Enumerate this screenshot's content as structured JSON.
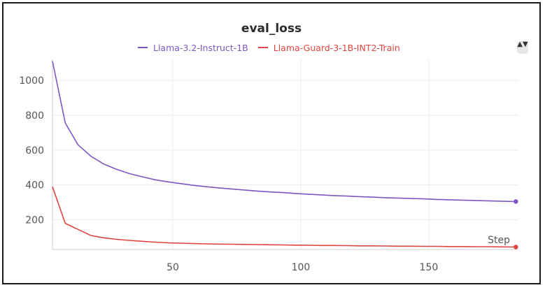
{
  "chart_data": {
    "type": "line",
    "title": "eval_loss",
    "xlabel": "Step",
    "ylabel": "",
    "xlim": [
      3,
      185
    ],
    "ylim": [
      30,
      1120
    ],
    "x_ticks": [
      50,
      100,
      150
    ],
    "y_ticks": [
      200,
      400,
      600,
      800,
      1000
    ],
    "grid": true,
    "legend_position": "top-center",
    "series": [
      {
        "name": "Llama-3.2-Instruct-1B",
        "color": "#7e57c2",
        "x": [
          3,
          8,
          13,
          18,
          23,
          28,
          33,
          38,
          43,
          48,
          53,
          58,
          63,
          68,
          73,
          78,
          83,
          88,
          93,
          98,
          103,
          108,
          113,
          118,
          123,
          128,
          133,
          138,
          143,
          148,
          153,
          158,
          163,
          168,
          173,
          178,
          184
        ],
        "y": [
          1110,
          755,
          630,
          565,
          520,
          490,
          465,
          447,
          430,
          418,
          408,
          398,
          390,
          383,
          377,
          371,
          365,
          360,
          356,
          351,
          347,
          343,
          339,
          336,
          333,
          330,
          327,
          325,
          322,
          320,
          317,
          315,
          313,
          311,
          309,
          307,
          305
        ]
      },
      {
        "name": "Llama-Guard-3-1B-INT2-Train",
        "color": "#e0443e",
        "x": [
          3,
          8,
          13,
          18,
          23,
          28,
          33,
          38,
          43,
          48,
          53,
          58,
          63,
          68,
          73,
          78,
          83,
          88,
          93,
          98,
          103,
          108,
          113,
          118,
          123,
          128,
          133,
          138,
          143,
          148,
          153,
          158,
          163,
          168,
          173,
          178,
          184
        ],
        "y": [
          390,
          180,
          145,
          110,
          97,
          88,
          82,
          77,
          72,
          68,
          66,
          64,
          62,
          61,
          60,
          59,
          58,
          57,
          56,
          55,
          54,
          53,
          53,
          52,
          51,
          51,
          50,
          49,
          49,
          48,
          48,
          47,
          47,
          46,
          46,
          45,
          44
        ]
      }
    ]
  },
  "legend": {
    "scroll_icon": "sort-arrows-icon",
    "scroll_glyph": "▲▼"
  },
  "style": {
    "grid_color": "#ececec",
    "axis_color": "#cfcfcf",
    "tick_label_color": "#555555"
  }
}
